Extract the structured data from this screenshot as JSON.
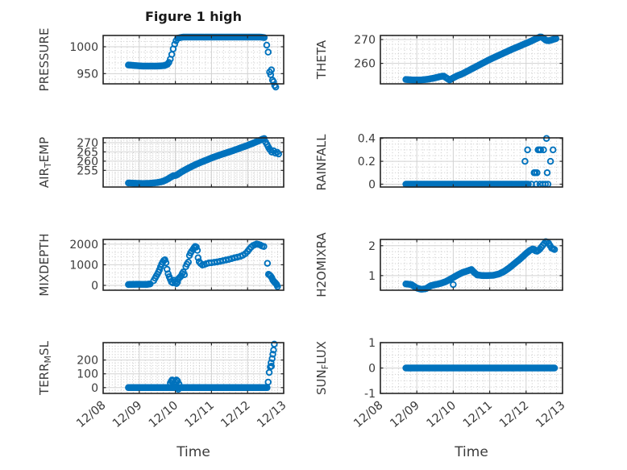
{
  "figure": {
    "title": "Figure 1 high",
    "xlabel": "Time",
    "x_ticks": [
      "12/08",
      "12/09",
      "12/10",
      "12/11",
      "12/12",
      "12/13"
    ],
    "x_minor_step": 0.16667,
    "marker_color": "#0072BD",
    "axis_color": "#262626",
    "grid_on": true,
    "minor_grid_on": true
  },
  "chart_data": [
    {
      "id": "pressure",
      "name": "PRESSURE",
      "type": "scatter",
      "row": 0,
      "col": 0,
      "label_parts": [
        {
          "t": "PRESSURE"
        }
      ],
      "ylim": [
        931,
        1021
      ],
      "yticks": [
        950,
        1000
      ],
      "ytick_labels": [
        "950",
        "1000"
      ],
      "yminor_step": 10,
      "line": {
        "x": [
          0.7,
          0.9,
          1.1,
          1.3,
          1.5,
          1.7,
          1.8,
          1.85,
          1.88,
          1.91,
          1.94,
          1.97,
          2.0,
          2.03,
          2.06,
          2.2,
          2.5,
          2.8,
          3.1,
          3.4,
          3.7,
          4.0,
          4.2,
          4.35,
          4.48
        ],
        "y": [
          966,
          965,
          964,
          964,
          964,
          965,
          968,
          975,
          981,
          988,
          996,
          1003,
          1008,
          1013,
          1016,
          1018,
          1018,
          1018,
          1018,
          1018,
          1018,
          1018,
          1018,
          1018,
          1017
        ],
        "step": 0.04
      },
      "points": [
        [
          4.53,
          1003
        ],
        [
          4.57,
          990
        ],
        [
          4.61,
          953
        ],
        [
          4.64,
          948
        ],
        [
          4.66,
          957
        ],
        [
          4.69,
          938
        ],
        [
          4.72,
          935
        ],
        [
          4.75,
          928
        ],
        [
          4.78,
          925
        ]
      ]
    },
    {
      "id": "theta",
      "name": "THETA",
      "type": "scatter",
      "row": 0,
      "col": 1,
      "label_parts": [
        {
          "t": "THETA"
        }
      ],
      "ylim": [
        251.4,
        271.7
      ],
      "yticks": [
        260,
        270
      ],
      "ytick_labels": [
        "260",
        "270"
      ],
      "yminor_step": 2,
      "line": {
        "x": [
          0.7,
          0.9,
          1.1,
          1.3,
          1.5,
          1.63,
          1.73,
          1.82,
          1.9,
          2.0,
          2.1,
          2.25,
          2.4,
          2.55,
          2.7,
          2.85,
          3.0,
          3.2,
          3.4,
          3.6,
          3.8,
          4.0,
          4.15,
          4.3,
          4.4,
          4.47,
          4.55,
          4.63,
          4.72,
          4.82
        ],
        "y": [
          253.2,
          253.0,
          253.0,
          253.3,
          253.9,
          254.4,
          254.7,
          253.8,
          253.0,
          253.9,
          254.7,
          255.6,
          256.8,
          258.0,
          259.2,
          260.4,
          261.6,
          263.0,
          264.4,
          265.8,
          267.1,
          268.4,
          269.4,
          270.5,
          271.2,
          270.6,
          269.6,
          269.5,
          269.9,
          270.4
        ],
        "step": 0.04
      },
      "points": []
    },
    {
      "id": "air-temp",
      "name": "AIR_TEMP",
      "type": "scatter",
      "row": 1,
      "col": 0,
      "label_parts": [
        {
          "t": "AIR"
        },
        {
          "t": "T",
          "sub": true
        },
        {
          "t": "EMP"
        }
      ],
      "ylim": [
        246,
        272.6
      ],
      "yticks": [
        255,
        260,
        265,
        270
      ],
      "ytick_labels": [
        "255",
        "260",
        "265",
        "270"
      ],
      "yminor_step": 1,
      "line": {
        "x": [
          0.7,
          0.9,
          1.1,
          1.3,
          1.5,
          1.65,
          1.78,
          1.88,
          1.95,
          2.0,
          2.08,
          2.18,
          2.3,
          2.45,
          2.6,
          2.8,
          3.0,
          3.2,
          3.4,
          3.6,
          3.8,
          4.0,
          4.15,
          4.3,
          4.4,
          4.46
        ],
        "y": [
          248.2,
          248.0,
          247.9,
          248.0,
          248.4,
          249.0,
          250.2,
          251.4,
          252.2,
          252.1,
          253.0,
          254.3,
          255.6,
          257.1,
          258.5,
          260.1,
          261.7,
          263.1,
          264.4,
          265.7,
          267.1,
          268.5,
          269.7,
          270.9,
          271.8,
          272.2
        ],
        "step": 0.04
      },
      "points": [
        [
          4.5,
          270.3
        ],
        [
          4.54,
          269.0
        ],
        [
          4.57,
          267.8
        ],
        [
          4.6,
          266.8
        ],
        [
          4.63,
          266.0
        ],
        [
          4.67,
          264.9
        ],
        [
          4.72,
          265.6
        ],
        [
          4.77,
          264.3
        ],
        [
          4.82,
          264.8
        ],
        [
          4.86,
          263.9
        ]
      ]
    },
    {
      "id": "rainfall",
      "name": "RAINFALL",
      "type": "scatter",
      "row": 1,
      "col": 1,
      "label_parts": [
        {
          "t": "RAINFALL"
        }
      ],
      "ylim": [
        -0.025,
        0.405
      ],
      "yticks": [
        0,
        0.2,
        0.4
      ],
      "ytick_labels": [
        "0",
        "0.2",
        "0.4"
      ],
      "yminor_step": 0.05,
      "line": {
        "x": [
          0.7,
          4.08
        ],
        "y": [
          0,
          0
        ],
        "step": 0.03
      },
      "points": [
        [
          3.97,
          0.2
        ],
        [
          4.04,
          0.3
        ],
        [
          4.15,
          0
        ],
        [
          4.22,
          0.1
        ],
        [
          4.25,
          0.1
        ],
        [
          4.28,
          0
        ],
        [
          4.3,
          0.1
        ],
        [
          4.33,
          0.3
        ],
        [
          4.36,
          0.3
        ],
        [
          4.38,
          0
        ],
        [
          4.4,
          0.3
        ],
        [
          4.46,
          0
        ],
        [
          4.48,
          0.3
        ],
        [
          4.53,
          0
        ],
        [
          4.56,
          0.4
        ],
        [
          4.58,
          0.1
        ],
        [
          4.6,
          0
        ],
        [
          4.67,
          0.2
        ],
        [
          4.74,
          0.3
        ]
      ]
    },
    {
      "id": "mixdepth",
      "name": "MIXDEPTH",
      "type": "scatter",
      "row": 2,
      "col": 0,
      "label_parts": [
        {
          "t": "MIXDEPTH"
        }
      ],
      "ylim": [
        -235,
        2230
      ],
      "yticks": [
        0,
        1000,
        2000
      ],
      "ytick_labels": [
        "0",
        "1000",
        "2000"
      ],
      "yminor_step": 200,
      "line": {
        "x": [
          0.7,
          0.95,
          1.2,
          1.32
        ],
        "y": [
          40,
          55,
          45,
          75
        ],
        "step": 0.025
      },
      "points": [
        [
          1.4,
          230
        ],
        [
          1.44,
          350
        ],
        [
          1.47,
          450
        ],
        [
          1.5,
          540
        ],
        [
          1.53,
          640
        ],
        [
          1.56,
          760
        ],
        [
          1.59,
          900
        ],
        [
          1.62,
          1030
        ],
        [
          1.65,
          1130
        ],
        [
          1.68,
          1210
        ],
        [
          1.71,
          1240
        ],
        [
          1.74,
          1100
        ],
        [
          1.77,
          780
        ],
        [
          1.8,
          560
        ],
        [
          1.83,
          420
        ],
        [
          1.86,
          300
        ],
        [
          1.89,
          170
        ],
        [
          1.93,
          120
        ],
        [
          1.96,
          250
        ],
        [
          1.99,
          170
        ],
        [
          2.03,
          90
        ],
        [
          2.06,
          160
        ],
        [
          2.09,
          330
        ],
        [
          2.13,
          400
        ],
        [
          2.16,
          460
        ],
        [
          2.19,
          570
        ],
        [
          2.22,
          650
        ],
        [
          2.25,
          520
        ],
        [
          2.29,
          910
        ],
        [
          2.32,
          1030
        ],
        [
          2.36,
          1130
        ],
        [
          2.39,
          1450
        ],
        [
          2.42,
          1570
        ],
        [
          2.45,
          1660
        ],
        [
          2.49,
          1750
        ],
        [
          2.52,
          1830
        ],
        [
          2.55,
          1890
        ],
        [
          2.58,
          1860
        ],
        [
          2.61,
          1700
        ],
        [
          2.63,
          1340
        ],
        [
          2.66,
          1150
        ],
        [
          2.7,
          1060
        ],
        [
          2.75,
          990
        ],
        [
          2.8,
          1010
        ],
        [
          2.86,
          1050
        ],
        [
          2.93,
          1090
        ],
        [
          3.0,
          1100
        ],
        [
          3.08,
          1120
        ],
        [
          3.16,
          1140
        ],
        [
          3.24,
          1170
        ],
        [
          3.32,
          1200
        ],
        [
          3.4,
          1230
        ],
        [
          3.48,
          1260
        ],
        [
          3.56,
          1300
        ],
        [
          3.64,
          1340
        ],
        [
          3.72,
          1370
        ],
        [
          3.8,
          1410
        ],
        [
          3.87,
          1460
        ],
        [
          3.94,
          1540
        ],
        [
          4.0,
          1650
        ],
        [
          4.05,
          1760
        ],
        [
          4.1,
          1860
        ],
        [
          4.15,
          1930
        ],
        [
          4.2,
          1970
        ],
        [
          4.25,
          2010
        ],
        [
          4.3,
          1990
        ],
        [
          4.35,
          1960
        ],
        [
          4.4,
          1910
        ],
        [
          4.45,
          1890
        ],
        [
          4.55,
          1070
        ],
        [
          4.58,
          540
        ],
        [
          4.61,
          500
        ],
        [
          4.64,
          450
        ],
        [
          4.67,
          370
        ],
        [
          4.7,
          260
        ],
        [
          4.73,
          190
        ],
        [
          4.76,
          130
        ],
        [
          4.79,
          80
        ],
        [
          4.81,
          30
        ],
        [
          4.83,
          -60
        ]
      ]
    },
    {
      "id": "h2omixra",
      "name": "H2OMIXRA",
      "type": "scatter",
      "row": 2,
      "col": 1,
      "label_parts": [
        {
          "t": "H2OMIXRA"
        }
      ],
      "ylim": [
        0.51,
        2.21
      ],
      "yticks": [
        1,
        2
      ],
      "ytick_labels": [
        "1",
        "2"
      ],
      "yminor_step": 0.2,
      "line": {
        "x": [
          0.7,
          0.85,
          1.0,
          1.12,
          1.25,
          1.38,
          1.52,
          1.66,
          1.8,
          1.92,
          2.02,
          2.12,
          2.25,
          2.38,
          2.5,
          2.58,
          2.66,
          2.8,
          2.95,
          3.1,
          3.25,
          3.4,
          3.55,
          3.7,
          3.85,
          4.0,
          4.1,
          4.2,
          4.28,
          4.36,
          4.45,
          4.55,
          4.62,
          4.7,
          4.8
        ],
        "y": [
          0.72,
          0.7,
          0.58,
          0.54,
          0.56,
          0.66,
          0.7,
          0.74,
          0.8,
          0.88,
          0.95,
          1.02,
          1.1,
          1.15,
          1.2,
          1.1,
          1.02,
          1.0,
          1.0,
          1.01,
          1.05,
          1.14,
          1.27,
          1.42,
          1.57,
          1.74,
          1.84,
          1.9,
          1.8,
          1.86,
          2.0,
          2.15,
          2.08,
          1.92,
          1.86
        ],
        "step": 0.04
      },
      "points": [
        [
          2.0,
          0.7
        ]
      ]
    },
    {
      "id": "terr-msl",
      "name": "TERR_MSL",
      "type": "scatter",
      "row": 3,
      "col": 0,
      "label_parts": [
        {
          "t": "TERR"
        },
        {
          "t": "M",
          "sub": true
        },
        {
          "t": "SL"
        }
      ],
      "ylim": [
        -42,
        326
      ],
      "yticks": [
        0,
        100,
        200
      ],
      "ytick_labels": [
        "0",
        "100",
        "200"
      ],
      "yminor_step": 20,
      "line": {
        "x": [
          0.7,
          4.55
        ],
        "y": [
          0,
          0
        ],
        "step": 0.03
      },
      "points": [
        [
          1.86,
          35
        ],
        [
          1.89,
          48
        ],
        [
          1.91,
          55
        ],
        [
          1.94,
          50
        ],
        [
          1.97,
          28
        ],
        [
          2.0,
          42
        ],
        [
          2.03,
          55
        ],
        [
          2.06,
          48
        ],
        [
          2.08,
          -12
        ],
        [
          2.1,
          25
        ],
        [
          4.57,
          40
        ],
        [
          4.6,
          110
        ],
        [
          4.63,
          150
        ],
        [
          4.65,
          180
        ],
        [
          4.66,
          155
        ],
        [
          4.68,
          210
        ],
        [
          4.7,
          242
        ],
        [
          4.72,
          272
        ],
        [
          4.74,
          315
        ]
      ]
    },
    {
      "id": "sun-flux",
      "name": "SUN_FLUX",
      "type": "scatter",
      "row": 3,
      "col": 1,
      "label_parts": [
        {
          "t": "SUN"
        },
        {
          "t": "F",
          "sub": true
        },
        {
          "t": "LUX"
        }
      ],
      "ylim": [
        -1,
        1
      ],
      "yticks": [
        -1,
        0,
        1
      ],
      "ytick_labels": [
        "-1",
        "0",
        "1"
      ],
      "yminor_step": 0.25,
      "line": {
        "x": [
          0.7,
          4.8
        ],
        "y": [
          0,
          0
        ],
        "step": 0.03
      },
      "points": []
    }
  ]
}
